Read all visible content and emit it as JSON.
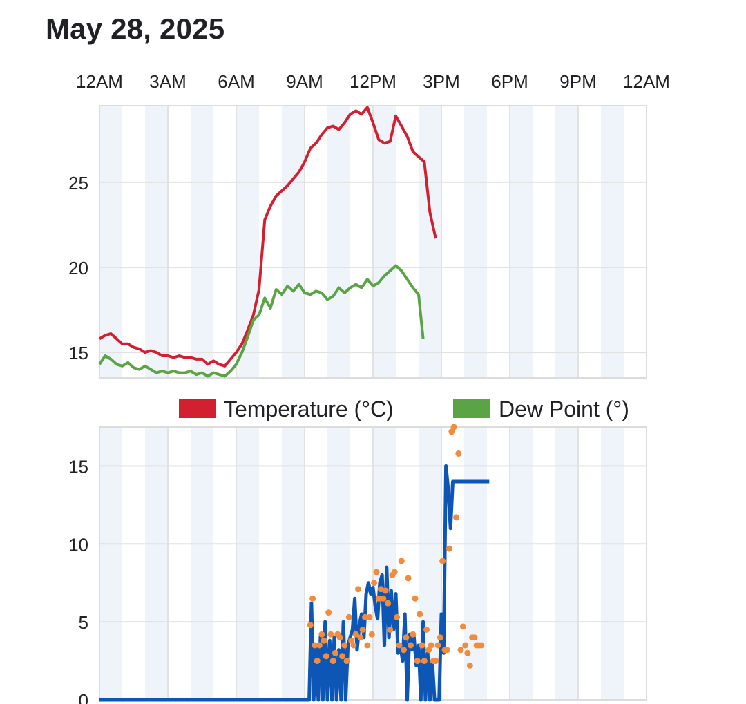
{
  "header": {
    "date": "May 28, 2025"
  },
  "colors": {
    "temperature": "#d32031",
    "dew_point": "#5aa446",
    "wind": "#0d56b5",
    "gust": "#f28c3c",
    "band": "#eef4fa",
    "grid": "#e2e2e2"
  },
  "chart_data": [
    {
      "type": "line",
      "x_axis": {
        "ticks": [
          "12AM",
          "3AM",
          "6AM",
          "9AM",
          "12PM",
          "3PM",
          "6PM",
          "9PM",
          "12AM"
        ],
        "range_hours": [
          0,
          24
        ]
      },
      "ylim": [
        13.5,
        29.5
      ],
      "y_ticks": [
        15,
        20,
        25
      ],
      "grid": true,
      "legend_position": "bottom-center",
      "x_hours": [
        0,
        0.25,
        0.5,
        0.75,
        1,
        1.25,
        1.5,
        1.75,
        2,
        2.25,
        2.5,
        2.75,
        3,
        3.25,
        3.5,
        3.75,
        4,
        4.25,
        4.5,
        4.75,
        5,
        5.25,
        5.5,
        5.75,
        6,
        6.25,
        6.5,
        6.75,
        7,
        7.25,
        7.5,
        7.75,
        8,
        8.25,
        8.5,
        8.75,
        9,
        9.25,
        9.5,
        9.75,
        10,
        10.25,
        10.5,
        10.75,
        11,
        11.25,
        11.5,
        11.75,
        12,
        12.25,
        12.5,
        12.75,
        13,
        13.25,
        13.5,
        13.75,
        14,
        14.25,
        14.5,
        14.75,
        15,
        15.25,
        15.5,
        15.75,
        16,
        16.25,
        16.5,
        16.75,
        17,
        17.1
      ],
      "series": [
        {
          "name": "Temperature (°C)",
          "values": [
            15.8,
            16.0,
            16.1,
            15.8,
            15.5,
            15.5,
            15.3,
            15.2,
            15.0,
            15.1,
            15.0,
            14.8,
            14.8,
            14.7,
            14.8,
            14.7,
            14.7,
            14.6,
            14.6,
            14.3,
            14.5,
            14.3,
            14.2,
            14.6,
            15.0,
            15.5,
            16.3,
            17.2,
            18.7,
            22.8,
            23.6,
            24.2,
            24.5,
            24.8,
            25.2,
            25.6,
            26.2,
            27.0,
            27.3,
            27.8,
            28.2,
            28.3,
            28.1,
            28.5,
            29.0,
            29.2,
            29.0,
            29.4,
            28.5,
            27.5,
            27.3,
            27.4,
            28.9,
            28.3,
            27.7,
            26.8,
            26.5,
            26.2,
            23.2,
            21.7
          ],
          "values_hours": [
            0,
            0.25,
            0.5,
            0.75,
            1,
            1.25,
            1.5,
            1.75,
            2,
            2.25,
            2.5,
            2.75,
            3,
            3.25,
            3.5,
            3.75,
            4,
            4.25,
            4.5,
            4.75,
            5,
            5.25,
            5.5,
            5.75,
            6,
            6.25,
            6.5,
            6.75,
            7,
            7.25,
            7.5,
            7.75,
            8,
            8.25,
            8.5,
            8.75,
            9,
            9.25,
            9.5,
            9.75,
            10,
            10.25,
            10.5,
            10.75,
            11,
            11.25,
            11.5,
            11.75,
            12,
            12.25,
            12.5,
            12.75,
            13,
            13.25,
            13.5,
            13.75,
            14,
            14.25,
            14.5,
            14.75
          ]
        },
        {
          "name": "Dew Point (°)",
          "values": [
            14.3,
            14.8,
            14.6,
            14.3,
            14.2,
            14.4,
            14.1,
            14.0,
            14.2,
            14.0,
            13.8,
            13.9,
            13.8,
            13.9,
            13.8,
            13.8,
            13.9,
            13.7,
            13.8,
            13.6,
            13.8,
            13.7,
            13.6,
            13.9,
            14.3,
            15.0,
            15.9,
            16.9,
            17.2,
            18.2,
            17.6,
            18.7,
            18.4,
            18.9,
            18.6,
            19.0,
            18.5,
            18.4,
            18.6,
            18.5,
            18.1,
            18.3,
            18.8,
            18.5,
            18.8,
            19.0,
            18.8,
            19.3,
            18.9,
            19.1,
            19.5,
            19.8,
            20.1,
            19.8,
            19.3,
            18.8,
            18.4,
            15.8
          ],
          "values_hours": [
            0,
            0.25,
            0.5,
            0.75,
            1,
            1.25,
            1.5,
            1.75,
            2,
            2.25,
            2.5,
            2.75,
            3,
            3.25,
            3.5,
            3.75,
            4,
            4.25,
            4.5,
            4.75,
            5,
            5.25,
            5.5,
            5.75,
            6,
            6.25,
            6.5,
            6.75,
            7,
            7.25,
            7.5,
            7.75,
            8,
            8.25,
            8.5,
            8.75,
            9,
            9.25,
            9.5,
            9.75,
            10,
            10.25,
            10.5,
            10.75,
            11,
            11.25,
            11.5,
            11.75,
            12,
            12.25,
            12.5,
            12.75,
            13,
            13.25,
            13.5,
            13.75,
            14,
            14.2
          ]
        }
      ]
    },
    {
      "type": "line",
      "x_axis": {
        "range_hours": [
          0,
          24
        ]
      },
      "ylim": [
        0,
        17.5
      ],
      "y_ticks": [
        0,
        5,
        10,
        15
      ],
      "grid": true,
      "series": [
        {
          "name": "",
          "style": "line",
          "x_hours": [
            0,
            9.2,
            9.3,
            9.4,
            9.5,
            9.6,
            9.7,
            9.8,
            9.9,
            10.0,
            10.1,
            10.2,
            10.3,
            10.4,
            10.5,
            10.6,
            10.7,
            10.8,
            10.9,
            11.0,
            11.1,
            11.2,
            11.3,
            11.4,
            11.5,
            11.6,
            11.7,
            11.8,
            11.9,
            12.0,
            12.1,
            12.2,
            12.3,
            12.4,
            12.5,
            12.6,
            12.7,
            12.8,
            12.9,
            13.0,
            13.1,
            13.2,
            13.3,
            13.4,
            13.5,
            13.6,
            13.7,
            13.8,
            13.9,
            14.0,
            14.1,
            14.2,
            14.3,
            14.4,
            14.5,
            14.6,
            14.7,
            14.8,
            14.9,
            15.0,
            15.1,
            15.2,
            15.3,
            15.4,
            15.5,
            15.6,
            15.7,
            15.8,
            15.9,
            16.0,
            16.1,
            16.2,
            16.3,
            16.4,
            16.5,
            16.6,
            16.7,
            16.8,
            16.9,
            17.0,
            17.1
          ],
          "values": [
            0,
            0,
            6.2,
            0,
            3.5,
            0,
            4.2,
            0,
            5.0,
            0,
            3.8,
            0,
            4.0,
            0,
            3.2,
            0,
            5.0,
            0,
            3.5,
            4.0,
            4.5,
            6.5,
            3.2,
            4.8,
            5.5,
            4.0,
            6.8,
            7.5,
            6.8,
            7.2,
            6.0,
            5.2,
            7.5,
            8.0,
            3.5,
            8.5,
            4.0,
            7.0,
            4.5,
            6.8,
            3.0,
            3.5,
            2.5,
            5.5,
            0,
            4.2,
            3.2,
            4.0,
            2.2,
            3.5,
            0,
            5.0,
            0,
            3.0,
            0,
            2.5,
            0,
            0,
            0,
            5.5,
            3.0,
            15.0,
            13.5,
            11.0,
            14.0,
            14.0,
            14.0,
            14.0,
            14.0,
            14.0,
            14.0,
            14.0,
            14.0,
            14.0,
            14.0,
            14.0,
            14.0,
            14.0,
            14.0,
            14.0,
            14.0
          ]
        },
        {
          "name": "",
          "style": "points",
          "x_hours": [
            9.25,
            9.35,
            9.45,
            9.55,
            9.65,
            9.75,
            9.85,
            9.95,
            10.05,
            10.15,
            10.25,
            10.35,
            10.45,
            10.55,
            10.65,
            10.75,
            10.85,
            10.95,
            11.05,
            11.15,
            11.25,
            11.35,
            11.45,
            11.55,
            11.65,
            11.75,
            11.85,
            11.95,
            12.05,
            12.15,
            12.25,
            12.35,
            12.45,
            12.55,
            12.65,
            12.75,
            12.85,
            12.95,
            13.05,
            13.15,
            13.25,
            13.35,
            13.45,
            13.55,
            13.65,
            13.75,
            13.85,
            13.95,
            14.05,
            14.15,
            14.25,
            14.35,
            14.45,
            14.55,
            14.65,
            14.75,
            14.85,
            14.95,
            15.05,
            15.15,
            15.25,
            15.35,
            15.45,
            15.55,
            15.65,
            15.75,
            15.85,
            15.95,
            16.05,
            16.15,
            16.25,
            16.35,
            16.45,
            16.55,
            16.65,
            16.75
          ],
          "values": [
            4.8,
            6.5,
            3.5,
            2.5,
            3.5,
            4.2,
            3.8,
            2.8,
            5.6,
            4.2,
            2.5,
            3.0,
            4.2,
            4.0,
            2.8,
            3.5,
            2.5,
            5.3,
            3.8,
            3.5,
            4.2,
            7.1,
            4.0,
            4.5,
            5.3,
            3.5,
            5.3,
            4.2,
            7.5,
            8.2,
            6.5,
            7.1,
            6.5,
            7.0,
            6.2,
            4.5,
            8.0,
            8.2,
            5.3,
            3.5,
            8.9,
            3.2,
            4.0,
            7.8,
            3.5,
            4.2,
            6.5,
            2.5,
            5.5,
            3.5,
            2.5,
            4.5,
            3.2,
            3.5,
            2.5,
            2.5,
            3.5,
            4.0,
            8.9,
            3.2,
            3.2,
            9.7,
            17.2,
            17.5,
            11.7,
            15.8,
            3.2,
            4.7,
            3.5,
            3.0,
            2.2,
            4.0,
            4.0,
            3.5,
            3.5,
            3.5
          ]
        }
      ]
    }
  ],
  "legend": {
    "temperature_label": "Temperature (°C)",
    "dew_point_label": "Dew Point (°)"
  }
}
